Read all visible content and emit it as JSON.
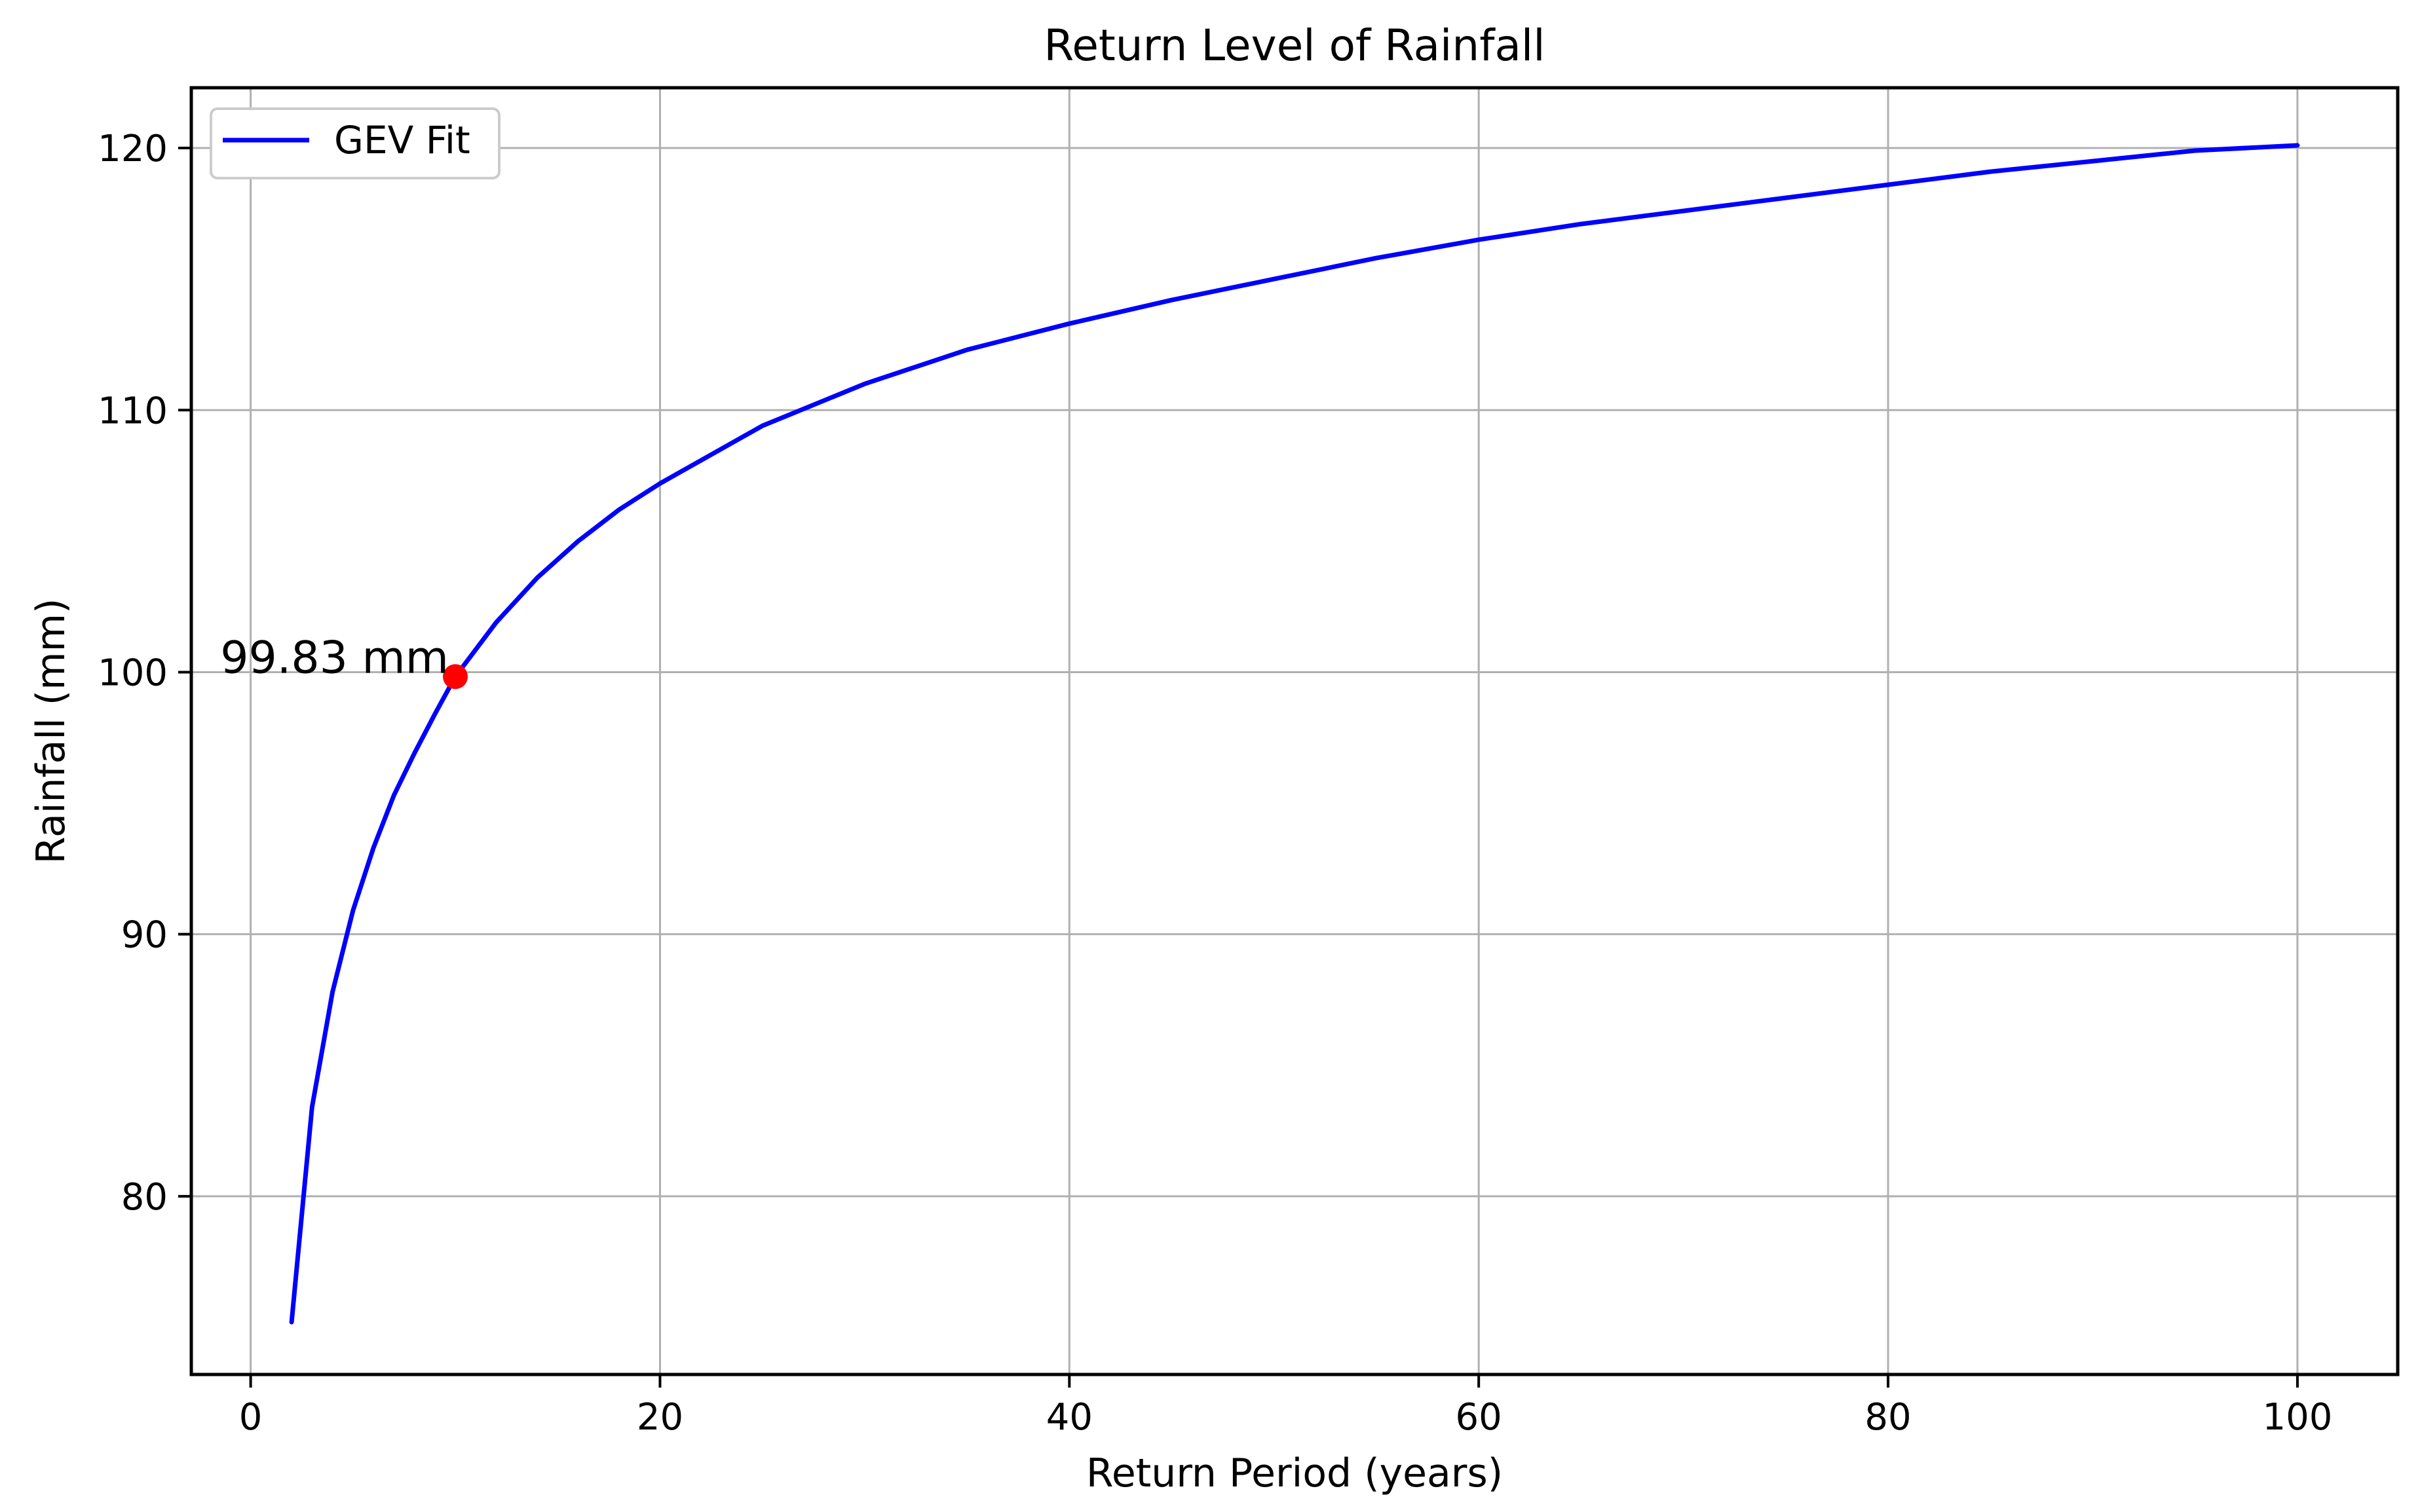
{
  "chart_data": {
    "type": "line",
    "title": "Return Level of Rainfall",
    "xlabel": "Return Period (years)",
    "ylabel": "Rainfall (mm)",
    "xlim": [
      -2.9,
      104.9
    ],
    "ylim": [
      73.2,
      122.3
    ],
    "xticks": [
      0,
      20,
      40,
      60,
      80,
      100
    ],
    "yticks": [
      80,
      90,
      100,
      110,
      120
    ],
    "grid": true,
    "legend": {
      "position": "top-left"
    },
    "series": [
      {
        "name": "GEV Fit",
        "color": "#0000ff",
        "x": [
          2,
          3,
          4,
          5,
          6,
          7,
          8,
          9,
          10,
          12,
          14,
          16,
          18,
          20,
          25,
          30,
          35,
          40,
          45,
          50,
          55,
          60,
          65,
          70,
          75,
          80,
          85,
          90,
          95,
          100
        ],
        "y": [
          75.2,
          83.4,
          87.8,
          90.9,
          93.3,
          95.3,
          96.9,
          98.4,
          99.83,
          101.9,
          103.6,
          105.0,
          106.2,
          107.2,
          109.4,
          111.0,
          112.3,
          113.3,
          114.2,
          115.0,
          115.8,
          116.5,
          117.1,
          117.6,
          118.1,
          118.6,
          119.1,
          119.5,
          119.9,
          120.1
        ]
      }
    ],
    "annotations": [
      {
        "x": 10,
        "y": 99.83,
        "label": "99.83 mm",
        "color": "#ff0000"
      }
    ]
  }
}
